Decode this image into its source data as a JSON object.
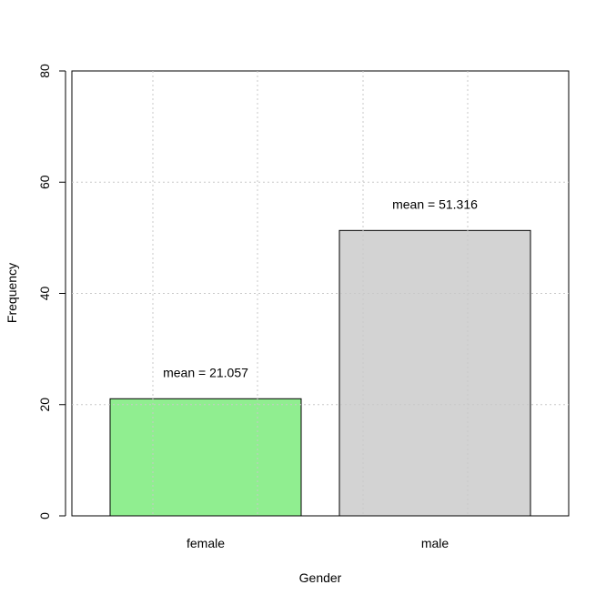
{
  "chart_data": {
    "type": "bar",
    "title": "",
    "xlabel": "Gender",
    "ylabel": "Frequency",
    "categories": [
      "female",
      "male"
    ],
    "values": [
      21.057,
      51.316
    ],
    "data_labels": [
      "mean = 21.057",
      "mean = 51.316"
    ],
    "bar_colors": [
      "#90ee90",
      "#d3d3d3"
    ],
    "ylim": [
      0,
      80
    ],
    "yticks": [
      0,
      20,
      40,
      60,
      80
    ],
    "ytick_labels": [
      "0",
      "20",
      "40",
      "60",
      "80"
    ],
    "grid": true,
    "legend": "none"
  }
}
